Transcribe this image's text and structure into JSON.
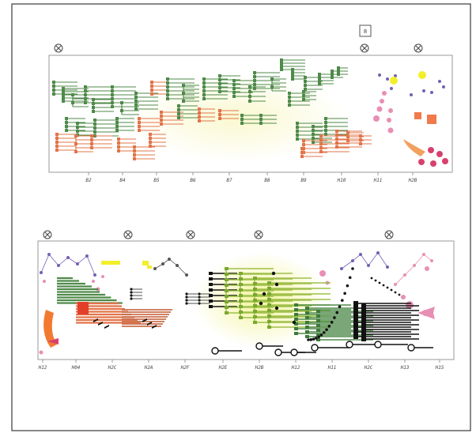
{
  "score": {
    "colors": {
      "green": "#4f8a4a",
      "orange": "#e2744a",
      "yellow": "#f2ef2a",
      "purple": "#7460b5",
      "pink": "#e88fb4",
      "crimson": "#d8406e",
      "black": "#111111",
      "frame": "#777777"
    },
    "box_label": "8",
    "system_top": {
      "ticks": [
        "B2",
        "B4",
        "B5",
        "B6",
        "B7",
        "B8",
        "B9",
        "H10",
        "H11",
        "H2B"
      ]
    },
    "system_bottom": {
      "ticks": [
        "H12",
        "H04",
        "H2C",
        "H2A",
        "H2F",
        "H2E",
        "H2B",
        "H12",
        "H11",
        "H2C",
        "H13",
        "H15",
        "H16"
      ]
    },
    "circle_markers": [
      {
        "name": "marker-top-1",
        "icon": "circled-x-icon"
      },
      {
        "name": "marker-top-2",
        "icon": "circled-x-icon"
      },
      {
        "name": "marker-top-3",
        "icon": "circled-x-icon"
      },
      {
        "name": "marker-bottom-1",
        "icon": "circled-x-icon"
      },
      {
        "name": "marker-bottom-2",
        "icon": "circled-x-icon"
      },
      {
        "name": "marker-bottom-3",
        "icon": "circled-x-icon"
      },
      {
        "name": "marker-bottom-4",
        "icon": "circled-x-icon"
      },
      {
        "name": "marker-bottom-5",
        "icon": "circled-x-icon"
      }
    ]
  }
}
